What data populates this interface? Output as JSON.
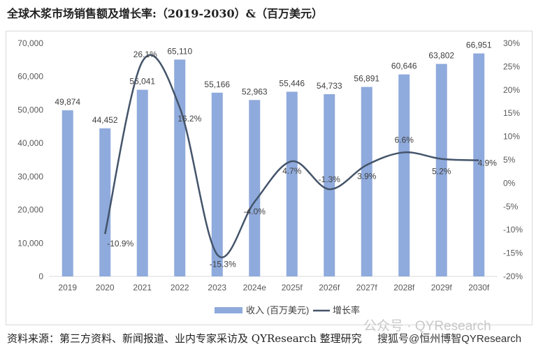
{
  "title": "全球木浆市场销售额及增长率:（2019-2030）&（百万美元）",
  "source": "资料来源：第三方资料、新闻报道、业内专家采访及 QYResearch 整理研究",
  "watermark": {
    "line1": "公众号 · QYResearch",
    "line2": "搜狐号@恒州博智QYResearch"
  },
  "chart_data": {
    "type": "bar+line",
    "categories": [
      "2019",
      "2020",
      "2021",
      "2022",
      "2023",
      "2024e",
      "2025f",
      "2026f",
      "2027f",
      "2028f",
      "2029f",
      "2030f"
    ],
    "series": [
      {
        "name": "收入 (百万美元)",
        "type": "bar",
        "axis": "left",
        "color": "#8faadc",
        "values": [
          49874,
          44452,
          56041,
          65110,
          55166,
          52963,
          55446,
          54733,
          56891,
          60646,
          63802,
          66951
        ],
        "labels": [
          "49,874",
          "44,452",
          "56,041",
          "65,110",
          "55,166",
          "52,963",
          "55,446",
          "54,733",
          "56,891",
          "60,646",
          "63,802",
          "66,951"
        ]
      },
      {
        "name": "增长率",
        "type": "line",
        "axis": "right",
        "color": "#44546a",
        "values": [
          null,
          -10.9,
          26.1,
          16.2,
          -15.3,
          -4.0,
          4.7,
          -1.3,
          3.9,
          6.6,
          5.2,
          4.9
        ],
        "labels": [
          "",
          "-10.9%",
          "26.1%",
          "16.2%",
          "-15.3%",
          "-4.0%",
          "4.7%",
          "-1.3%",
          "3.9%",
          "6.6%",
          "5.2%",
          "4.9%"
        ]
      }
    ],
    "y_left": {
      "ylim": [
        0,
        70000
      ],
      "ticks": [
        "0",
        "10,000",
        "20,000",
        "30,000",
        "40,000",
        "50,000",
        "60,000",
        "70,000"
      ]
    },
    "y_right": {
      "ylim": [
        -20,
        30
      ],
      "ticks": [
        "-20%",
        "-15%",
        "-10%",
        "-5%",
        "0%",
        "5%",
        "10%",
        "15%",
        "20%",
        "25%",
        "30%"
      ]
    },
    "grid": false,
    "legend_position": "bottom"
  }
}
